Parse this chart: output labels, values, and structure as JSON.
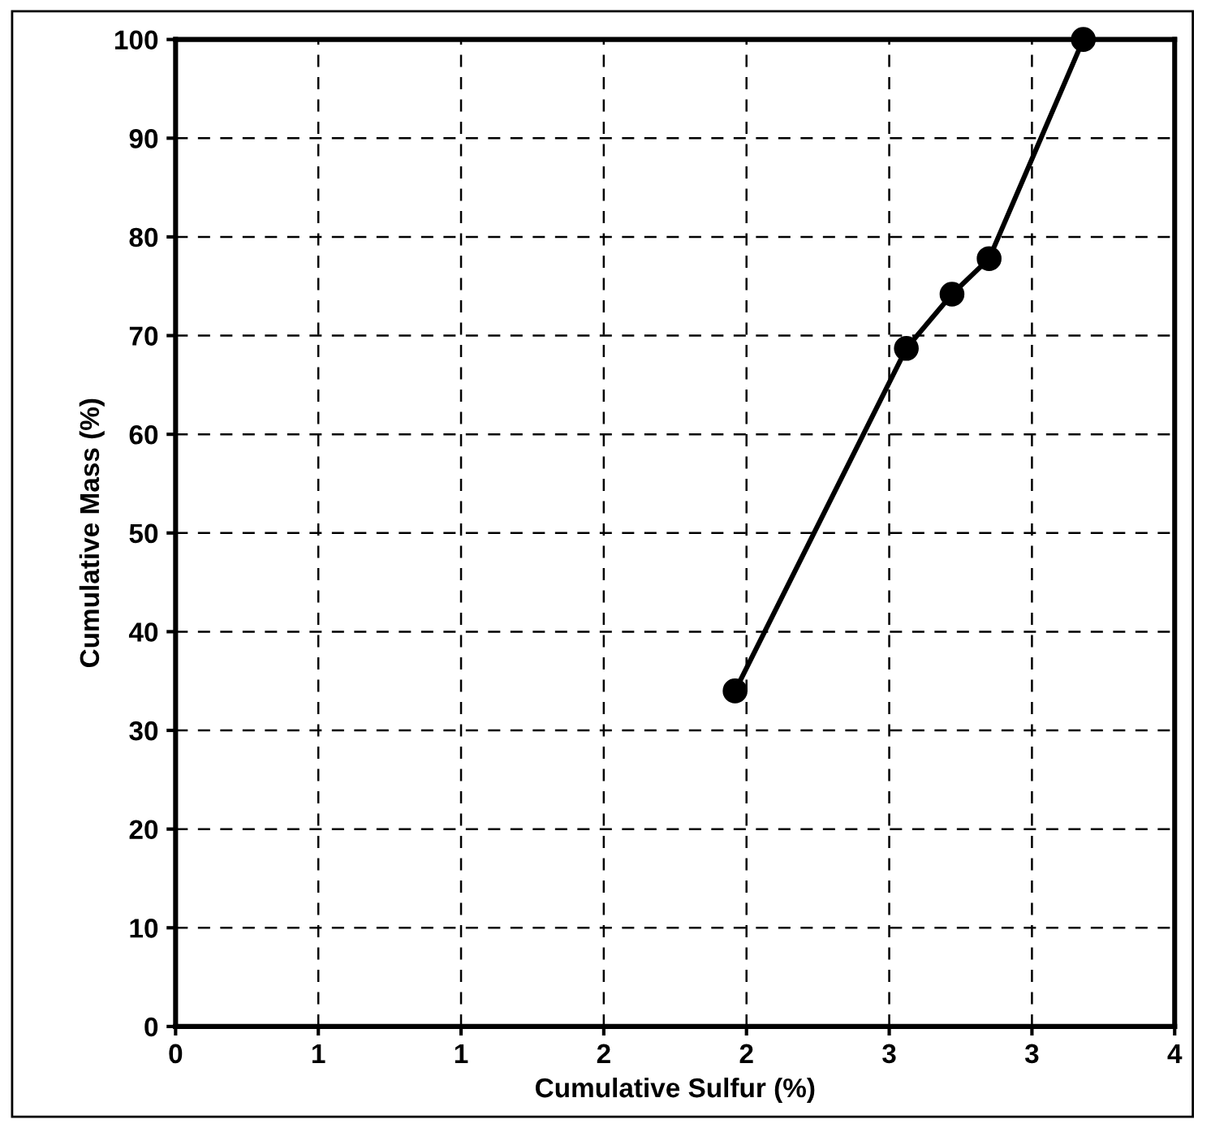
{
  "chart_data": {
    "type": "line",
    "xlabel": "Cumulative Sulfur (%)",
    "ylabel": "Cumulative Mass (%)",
    "x": [
      1.96,
      2.56,
      2.72,
      2.85,
      3.18
    ],
    "series": [
      {
        "color": "#000000",
        "values": [
          34,
          68.7,
          74.2,
          77.8,
          100
        ]
      }
    ],
    "xlim": [
      0,
      3.5
    ],
    "ylim": [
      0,
      100
    ],
    "xticks": [
      0,
      {
        "value": 0.5,
        "label": "1"
      },
      1,
      {
        "value": 1.5,
        "label": "2"
      },
      2,
      {
        "value": 2.5,
        "label": "3"
      },
      3,
      {
        "value": 3.5,
        "label": "4"
      }
    ],
    "yticks": [
      0,
      10,
      20,
      30,
      40,
      50,
      60,
      70,
      80,
      90,
      100
    ],
    "grid": true,
    "marker": "circle",
    "line_style": "solid"
  }
}
